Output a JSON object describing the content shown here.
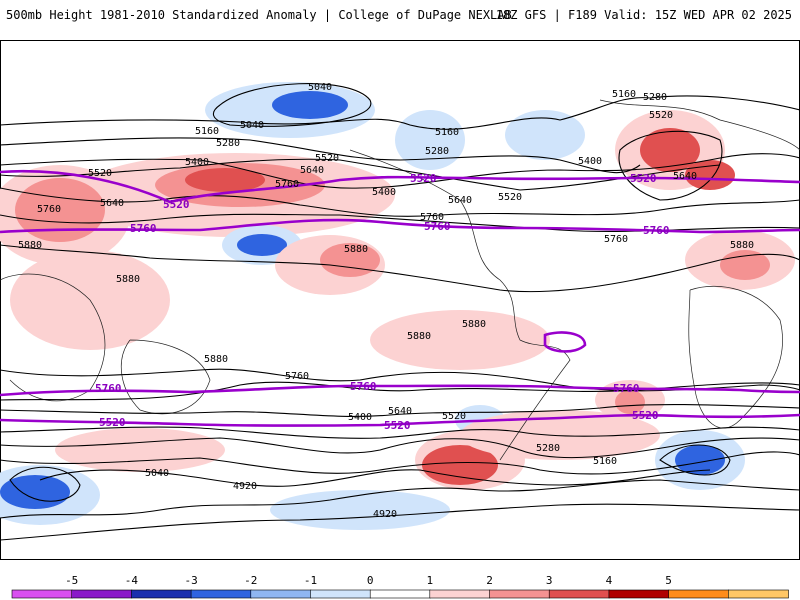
{
  "header": {
    "left": "500mb Height 1981-2010 Standardized Anomaly | College of DuPage NEXLAB",
    "right": "18Z GFS | F189 Valid: 15Z WED APR 02 2025"
  },
  "colors": {
    "contour": "#000000",
    "highlight_contour": "#9900cc",
    "pos1": "#fcd2d2",
    "pos2": "#f49292",
    "pos3": "#e05050",
    "neg1": "#d0e4fb",
    "neg2": "#8fb6f2",
    "neg3": "#2f64e0",
    "neg4": "#1a2f9e"
  },
  "contour_labels": [
    "5040",
    "5040",
    "5160",
    "5280",
    "5400",
    "5520",
    "5640",
    "5760",
    "5880",
    "5160",
    "5280",
    "5400",
    "5520",
    "5640",
    "5760",
    "5880",
    "5160",
    "5280",
    "5400",
    "5520",
    "5640",
    "5760",
    "5880",
    "5520",
    "5640",
    "5760",
    "5880",
    "5880",
    "5880",
    "5880",
    "5760",
    "5640",
    "5520",
    "5400",
    "5280",
    "5160",
    "5040",
    "4920",
    "4920"
  ],
  "highlight_labels": [
    "5520",
    "5760",
    "5520",
    "5760",
    "5520",
    "5760",
    "5760",
    "5760",
    "5760",
    "5520",
    "5520",
    "5520"
  ],
  "colorbar": {
    "ticks": [
      "-5",
      "-4",
      "-3",
      "-2",
      "-1",
      "0",
      "1",
      "2",
      "3",
      "4",
      "5"
    ],
    "colors": [
      "#d94ff0",
      "#8a19c9",
      "#1a2fae",
      "#2f64e0",
      "#8fb6f2",
      "#d0e4fb",
      "#ffffff",
      "#fcd2d2",
      "#f49292",
      "#e05050",
      "#b00000",
      "#ff8c1a",
      "#ffc766"
    ]
  }
}
